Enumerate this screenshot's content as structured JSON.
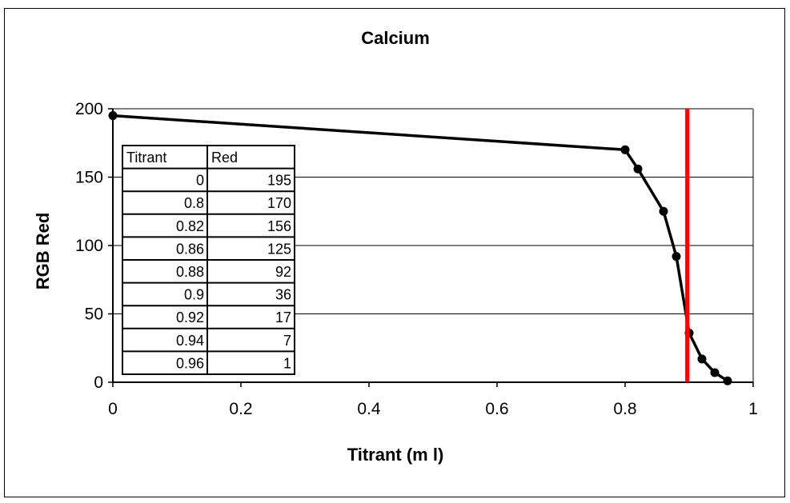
{
  "chart_data": {
    "type": "line",
    "title": "Calcium",
    "xlabel": "Titrant (m l)",
    "ylabel": "RGB Red",
    "xlim": [
      0,
      1
    ],
    "ylim": [
      0,
      200
    ],
    "x_ticks": [
      0,
      0.2,
      0.4,
      0.6,
      0.8,
      1
    ],
    "y_ticks": [
      0,
      50,
      100,
      150,
      200
    ],
    "grid": true,
    "series": [
      {
        "name": "Red",
        "x": [
          0,
          0.8,
          0.82,
          0.86,
          0.88,
          0.9,
          0.92,
          0.94,
          0.96
        ],
        "y": [
          195,
          170,
          156,
          125,
          92,
          36,
          17,
          7,
          1
        ]
      }
    ],
    "endpoint_line": {
      "x": 0.897,
      "color": "#ff0000"
    },
    "data_table": {
      "headers": [
        "Titrant",
        "Red"
      ],
      "rows": [
        [
          "0",
          "195"
        ],
        [
          "0.8",
          "170"
        ],
        [
          "0.82",
          "156"
        ],
        [
          "0.86",
          "125"
        ],
        [
          "0.88",
          "92"
        ],
        [
          "0.9",
          "36"
        ],
        [
          "0.92",
          "17"
        ],
        [
          "0.94",
          "7"
        ],
        [
          "0.96",
          "1"
        ]
      ]
    }
  }
}
